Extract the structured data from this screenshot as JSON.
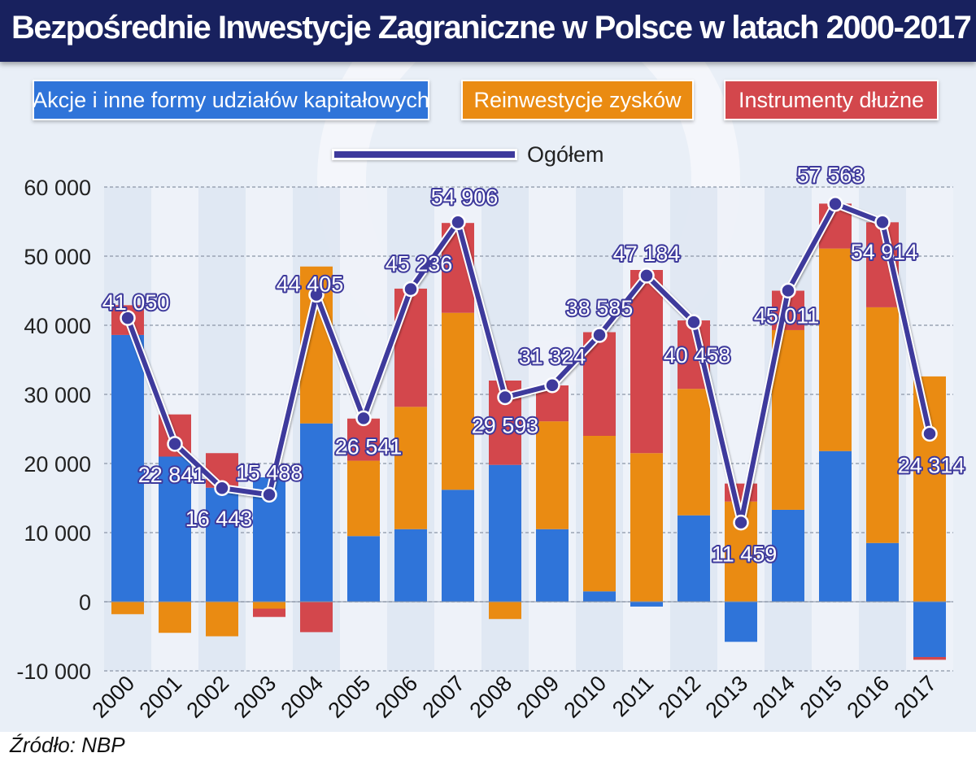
{
  "title": "Bezpośrednie Inwestycje Zagraniczne w Polsce w latach 2000-2017",
  "source": "Źródło:  NBP",
  "colors": {
    "header_bg": "#18215e",
    "equity": "#2f74d9",
    "reinvested": "#ea8b12",
    "debt": "#d3474c",
    "total_line": "#3e3a9c",
    "grid": "#9aa4b4"
  },
  "chart_data": {
    "type": "bar",
    "stacked": true,
    "categories": [
      "2000",
      "2001",
      "2002",
      "2003",
      "2004",
      "2005",
      "2006",
      "2007",
      "2008",
      "2009",
      "2010",
      "2011",
      "2012",
      "2013",
      "2014",
      "2015",
      "2016",
      "2017"
    ],
    "series": [
      {
        "name": "Akcje i inne formy udziałów kapitałowych",
        "type": "bar",
        "values": [
          38600,
          21000,
          16500,
          18000,
          25800,
          9500,
          10500,
          16200,
          19800,
          10500,
          1500,
          -700,
          12500,
          -5800,
          13300,
          21800,
          8500,
          -8000
        ]
      },
      {
        "name": "Reinwestycje zysków",
        "type": "bar",
        "values": [
          -1800,
          -4500,
          -5000,
          -1000,
          22700,
          10900,
          17700,
          25600,
          -2500,
          15600,
          22500,
          21500,
          18300,
          14500,
          26000,
          29300,
          34100,
          32600
        ]
      },
      {
        "name": "Instrumenty dłużne",
        "type": "bar",
        "values": [
          4300,
          6100,
          5000,
          -1200,
          -4400,
          6100,
          17100,
          13000,
          12200,
          5200,
          15000,
          26500,
          9900,
          2600,
          5700,
          6500,
          12300,
          -400
        ]
      },
      {
        "name": "Ogółem",
        "type": "line",
        "values": [
          41050,
          22841,
          16443,
          15488,
          44405,
          26541,
          45236,
          54906,
          29593,
          31324,
          38585,
          47184,
          40458,
          11459,
          45011,
          57563,
          54914,
          24314
        ]
      }
    ],
    "point_labels": [
      "41 050",
      "22 841",
      "16 443",
      "15 488",
      "44 405",
      "26 541",
      "45 236",
      "54 906",
      "29 593",
      "31 324",
      "38 585",
      "47 184",
      "40 458",
      "11 459",
      "45 011",
      "57 563",
      "54 914",
      "24 314"
    ],
    "yticks": [
      60000,
      50000,
      40000,
      30000,
      20000,
      10000,
      0,
      -10000
    ],
    "ytick_labels": [
      "60 000",
      "50 000",
      "40 000",
      "30 000",
      "20 000",
      "10 000",
      "0",
      "-10 000"
    ],
    "ylim": [
      -10000,
      60000
    ],
    "grid": true,
    "legend_position": "top"
  }
}
